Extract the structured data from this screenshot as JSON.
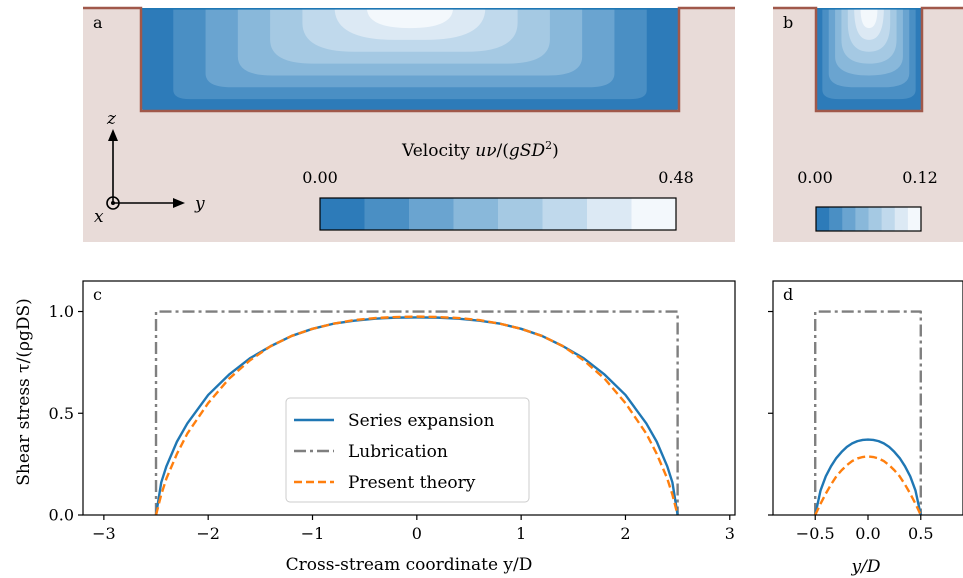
{
  "panels": {
    "a": {
      "letter": "a",
      "colorbar": {
        "label": "Velocity uν/(gSD²)",
        "label_prefix": "Velocity ",
        "min_label": "0.00",
        "max_label": "0.48",
        "levels": 8
      },
      "axes": {
        "z": "z",
        "y": "y",
        "x": "x"
      }
    },
    "b": {
      "letter": "b",
      "colorbar": {
        "min_label": "0.00",
        "max_label": "0.12",
        "levels": 8
      }
    },
    "c": {
      "letter": "c"
    },
    "d": {
      "letter": "d"
    }
  },
  "colors": {
    "ground": "#e8dbd8",
    "bank": "#a0584a",
    "series": "#1f77b4",
    "lubrication": "#7f7f7f",
    "present": "#ff7f0e",
    "contour_levels": [
      "#2d7bb9",
      "#4a8fc4",
      "#6aa4d0",
      "#89b8da",
      "#a5c9e3",
      "#c0d9ec",
      "#dce9f4",
      "#f3f8fc"
    ]
  },
  "chart_data": [
    {
      "panel": "c",
      "type": "line",
      "xlabel": "Cross-stream coordinate y/D",
      "ylabel": "Shear stress τ/(ρgDS)",
      "xlim": [
        -3.2,
        3.05
      ],
      "ylim": [
        0,
        1.15
      ],
      "xticks": [
        -3,
        -2,
        -1,
        0,
        1,
        2,
        3
      ],
      "xtick_labels": [
        "−3",
        "−2",
        "−1",
        "0",
        "1",
        "2",
        "3"
      ],
      "yticks": [
        0.0,
        0.5,
        1.0
      ],
      "ytick_labels": [
        "0.0",
        "0.5",
        "1.0"
      ],
      "legend": {
        "placement": "lower-center",
        "entries": [
          "Series expansion",
          "Lubrication",
          "Present theory"
        ]
      },
      "series": [
        {
          "name": "Series expansion",
          "style": "solid",
          "x": [
            -2.5,
            -2.45,
            -2.4,
            -2.3,
            -2.2,
            -2.0,
            -1.8,
            -1.6,
            -1.4,
            -1.2,
            -1.0,
            -0.8,
            -0.6,
            -0.4,
            -0.2,
            0.0,
            0.2,
            0.4,
            0.6,
            0.8,
            1.0,
            1.2,
            1.4,
            1.6,
            1.8,
            2.0,
            2.2,
            2.3,
            2.4,
            2.45,
            2.5
          ],
          "y": [
            0.0,
            0.16,
            0.24,
            0.36,
            0.45,
            0.59,
            0.69,
            0.77,
            0.83,
            0.88,
            0.915,
            0.94,
            0.955,
            0.965,
            0.97,
            0.971,
            0.97,
            0.965,
            0.955,
            0.94,
            0.915,
            0.88,
            0.83,
            0.77,
            0.69,
            0.59,
            0.45,
            0.36,
            0.24,
            0.16,
            0.0
          ]
        },
        {
          "name": "Lubrication",
          "style": "dashdot",
          "x": [
            -2.5,
            -2.5,
            2.5,
            2.5
          ],
          "y": [
            0.0,
            1.0,
            1.0,
            0.0
          ]
        },
        {
          "name": "Present theory",
          "style": "dashed",
          "x": [
            -2.5,
            -2.45,
            -2.4,
            -2.3,
            -2.2,
            -2.0,
            -1.8,
            -1.6,
            -1.4,
            -1.2,
            -1.0,
            -0.8,
            -0.6,
            -0.4,
            -0.2,
            0.0,
            0.2,
            0.4,
            0.6,
            0.8,
            1.0,
            1.2,
            1.4,
            1.6,
            1.8,
            2.0,
            2.2,
            2.3,
            2.4,
            2.45,
            2.5
          ],
          "y": [
            0.0,
            0.1,
            0.18,
            0.3,
            0.4,
            0.55,
            0.67,
            0.76,
            0.83,
            0.88,
            0.915,
            0.94,
            0.958,
            0.968,
            0.973,
            0.975,
            0.973,
            0.968,
            0.958,
            0.94,
            0.915,
            0.88,
            0.83,
            0.76,
            0.67,
            0.55,
            0.4,
            0.3,
            0.18,
            0.1,
            0.0
          ]
        }
      ]
    },
    {
      "panel": "d",
      "type": "line",
      "xlabel": "y/D",
      "xlim": [
        -0.9,
        0.9
      ],
      "ylim": [
        0,
        1.15
      ],
      "xticks": [
        -0.5,
        0.0,
        0.5
      ],
      "xtick_labels": [
        "−0.5",
        "0.0",
        "0.5"
      ],
      "yticks": [
        0.0,
        0.5,
        1.0
      ],
      "ytick_labels": [],
      "series": [
        {
          "name": "Series expansion",
          "style": "solid",
          "x": [
            -0.5,
            -0.45,
            -0.4,
            -0.35,
            -0.3,
            -0.25,
            -0.2,
            -0.15,
            -0.1,
            -0.05,
            0.0,
            0.05,
            0.1,
            0.15,
            0.2,
            0.25,
            0.3,
            0.35,
            0.4,
            0.45,
            0.5
          ],
          "y": [
            0.0,
            0.12,
            0.19,
            0.24,
            0.28,
            0.31,
            0.335,
            0.352,
            0.363,
            0.369,
            0.371,
            0.369,
            0.363,
            0.352,
            0.335,
            0.31,
            0.28,
            0.24,
            0.19,
            0.12,
            0.0
          ]
        },
        {
          "name": "Lubrication",
          "style": "dashdot",
          "x": [
            -0.5,
            -0.5,
            0.5,
            0.5
          ],
          "y": [
            0.0,
            1.0,
            1.0,
            0.0
          ]
        },
        {
          "name": "Present theory",
          "style": "dashed",
          "x": [
            -0.5,
            -0.45,
            -0.4,
            -0.35,
            -0.3,
            -0.25,
            -0.2,
            -0.15,
            -0.1,
            -0.05,
            0.0,
            0.05,
            0.1,
            0.15,
            0.2,
            0.25,
            0.3,
            0.35,
            0.4,
            0.45,
            0.5
          ],
          "y": [
            0.0,
            0.055,
            0.105,
            0.15,
            0.19,
            0.22,
            0.245,
            0.265,
            0.278,
            0.285,
            0.288,
            0.285,
            0.278,
            0.265,
            0.245,
            0.22,
            0.19,
            0.15,
            0.105,
            0.055,
            0.0
          ]
        }
      ]
    }
  ]
}
